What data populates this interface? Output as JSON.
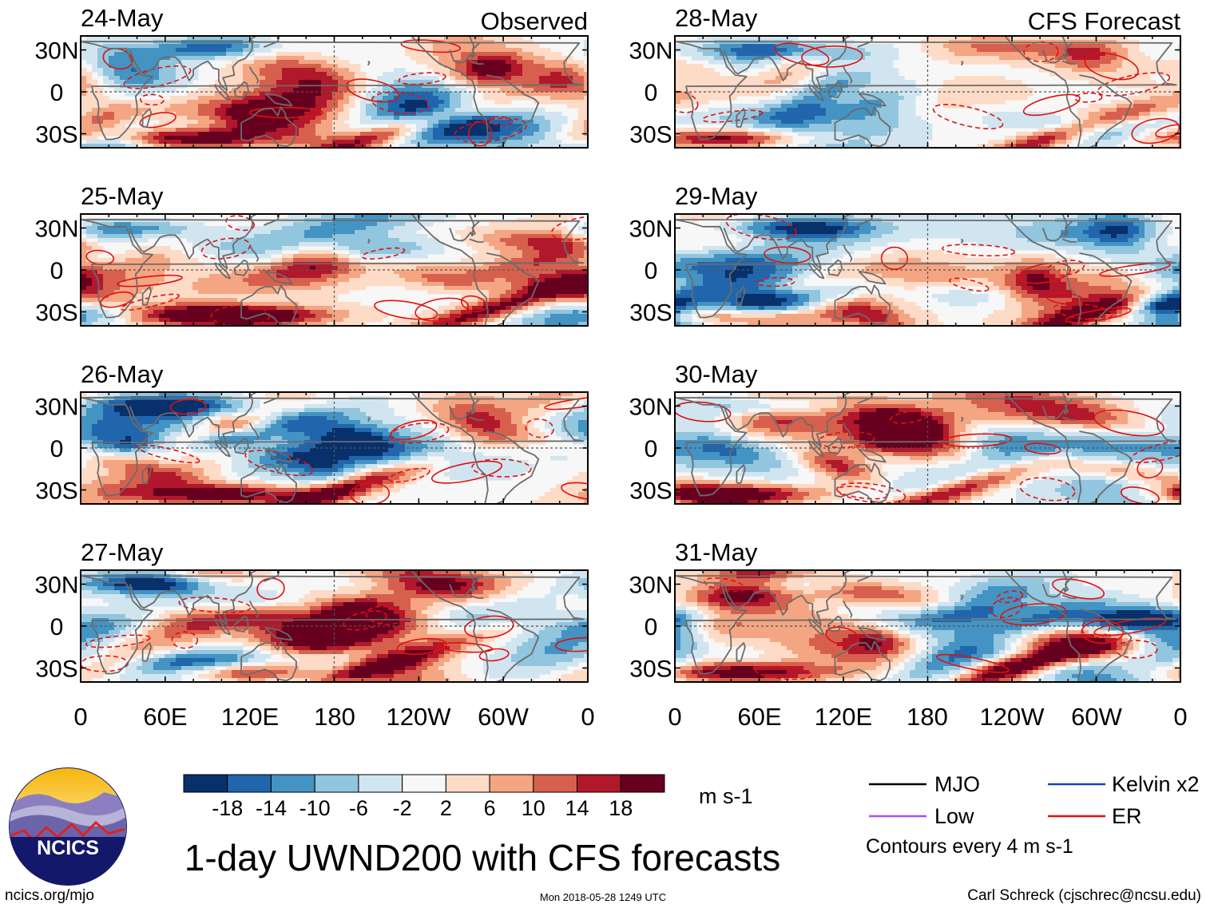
{
  "header": {
    "observed_label": "Observed",
    "forecast_label": "CFS Forecast"
  },
  "panels": {
    "observed": [
      {
        "date": "24-May",
        "seed": 11
      },
      {
        "date": "25-May",
        "seed": 23
      },
      {
        "date": "26-May",
        "seed": 37
      },
      {
        "date": "27-May",
        "seed": 41
      }
    ],
    "forecast": [
      {
        "date": "28-May",
        "seed": 53
      },
      {
        "date": "29-May",
        "seed": 67
      },
      {
        "date": "30-May",
        "seed": 71
      },
      {
        "date": "31-May",
        "seed": 89
      }
    ]
  },
  "chart_data": {
    "type": "heatmap",
    "variable": "UWND200",
    "title": "1-day UWND200 with CFS forecasts",
    "x_tick_labels": [
      "0",
      "60E",
      "120E",
      "180",
      "120W",
      "60W",
      "0"
    ],
    "x_tick_values_deg_east": [
      0,
      60,
      120,
      180,
      240,
      300,
      360
    ],
    "y_tick_labels": [
      "30N",
      "0",
      "30S"
    ],
    "y_tick_values_deg": [
      30,
      0,
      -30
    ],
    "xlim": [
      0,
      360
    ],
    "ylim": [
      -40,
      40
    ],
    "colorbar": {
      "unit": "m s-1",
      "tick_labels": [
        "-18",
        "-14",
        "-10",
        "-6",
        "-2",
        "2",
        "6",
        "10",
        "14",
        "18"
      ],
      "levels": [
        -18,
        -14,
        -10,
        -6,
        -2,
        2,
        6,
        10,
        14,
        18
      ],
      "colors": [
        "#08306b",
        "#2166ac",
        "#4393c3",
        "#92c5de",
        "#d1e5f0",
        "#f7f7f7",
        "#fddbc7",
        "#f4a582",
        "#d6604d",
        "#b2182b",
        "#67001f"
      ]
    },
    "contour_interval_text": "Contours every 4 m s-1",
    "legend": [
      {
        "label": "MJO",
        "color": "#000000"
      },
      {
        "label": "Kelvin x2",
        "color": "#1a3ccc"
      },
      {
        "label": "Low",
        "color": "#a64dff"
      },
      {
        "label": "ER",
        "color": "#e01010"
      }
    ]
  },
  "footer": {
    "site": "ncics.org/mjo",
    "timestamp": "Mon 2018-05-28 1249 UTC",
    "author": "Carl Schreck (cjschrec@ncsu.edu)",
    "logo_text": "NCICS"
  }
}
